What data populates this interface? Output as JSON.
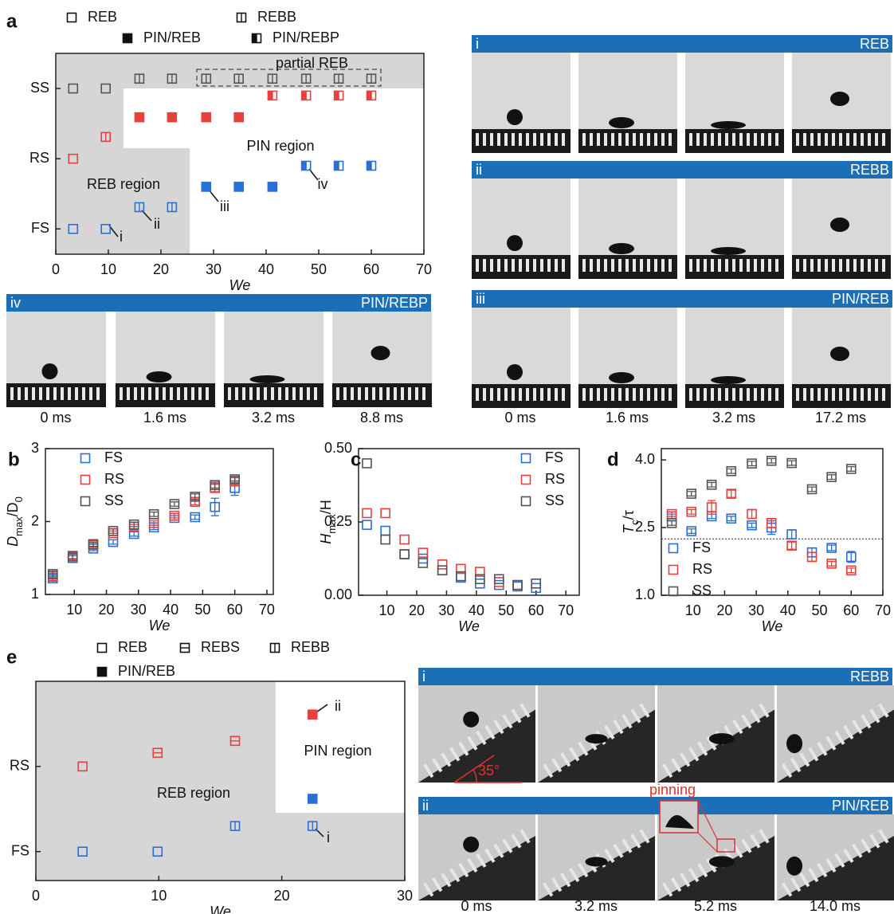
{
  "panel_labels": [
    "a",
    "b",
    "c",
    "d",
    "e"
  ],
  "chart_data": [
    {
      "type": "scatter",
      "xlabel": "We",
      "xlim": [
        0,
        70
      ],
      "xticks": [
        0,
        10,
        20,
        30,
        40,
        50,
        60,
        70
      ],
      "ylim": [
        -0.36,
        2.5
      ],
      "yticks": [
        {
          "value": 0,
          "label": "FS"
        },
        {
          "value": 1,
          "label": "RS"
        },
        {
          "value": 2,
          "label": "SS"
        }
      ],
      "legend": [
        "REB",
        "REBB",
        "PIN/REB",
        "PIN/REBP"
      ],
      "legend_markers": [
        "open",
        "v-bar",
        "filled",
        "half"
      ],
      "x": [
        3.3,
        9.5,
        15.9,
        22.1,
        28.6,
        34.8,
        41.2,
        47.6,
        53.8,
        60
      ],
      "series": [
        {
          "color": "#555555",
          "values": [
            2,
            2,
            2.14,
            2.14,
            2.14,
            2.14,
            2.14,
            2.14,
            2.14,
            2.14
          ],
          "markers": [
            "open",
            "open",
            "v-bar",
            "v-bar",
            "v-bar",
            "v-bar",
            "v-bar",
            "v-bar",
            "v-bar",
            "v-bar"
          ]
        },
        {
          "color": "#e8403f",
          "values": [
            1,
            1.31,
            1.59,
            1.59,
            1.59,
            1.59,
            1.9,
            1.9,
            1.9,
            1.9
          ],
          "markers": [
            "open",
            "v-bar",
            "filled",
            "filled",
            "filled",
            "filled",
            "half",
            "half",
            "half",
            "half"
          ]
        },
        {
          "color": "#2a6fd6",
          "values": [
            0,
            0,
            0.31,
            0.31,
            0.6,
            0.6,
            0.6,
            0.9,
            0.9,
            0.9
          ],
          "markers": [
            "open",
            "open",
            "v-bar",
            "v-bar",
            "filled",
            "filled",
            "filled",
            "half",
            "half",
            "half"
          ]
        }
      ],
      "annotations": [
        "partial REB",
        "PIN region",
        "REB region",
        "i",
        "ii",
        "iii",
        "iv"
      ]
    },
    {
      "type": "scatter",
      "xlabel": "We",
      "ylabel": [
        "D",
        "max",
        "/D",
        "0"
      ],
      "xlim": [
        1,
        72
      ],
      "xticks": [
        10,
        20,
        30,
        40,
        50,
        60,
        70
      ],
      "ylim": [
        1,
        3
      ],
      "yticks": [
        1,
        2,
        3
      ],
      "x": [
        3.3,
        9.5,
        15.9,
        22.1,
        28.6,
        34.8,
        41.2,
        47.6,
        53.8,
        60
      ],
      "series": [
        {
          "name": "FS",
          "color": "#2a6fd6",
          "values": [
            1.22,
            1.5,
            1.63,
            1.72,
            1.83,
            1.92,
            2.05,
            2.06,
            2.2,
            2.46
          ],
          "errors": [
            0.04,
            0.03,
            0.03,
            0.03,
            0.03,
            0.03,
            0.03,
            0.03,
            0.12,
            0.1
          ]
        },
        {
          "name": "RS",
          "color": "#e8403f",
          "values": [
            1.25,
            1.53,
            1.68,
            1.84,
            1.93,
            1.98,
            2.08,
            2.27,
            2.46,
            2.55
          ],
          "errors": [
            0.04,
            0.04,
            0.03,
            0.03,
            0.03,
            0.03,
            0.03,
            0.04,
            0.05,
            0.05
          ]
        },
        {
          "name": "SS",
          "color": "#555555",
          "values": [
            1.28,
            1.52,
            1.69,
            1.87,
            1.96,
            2.1,
            2.24,
            2.34,
            2.5,
            2.58
          ],
          "errors": [
            0.04,
            0.03,
            0.03,
            0.03,
            0.03,
            0.03,
            0.03,
            0.04,
            0.04,
            0.04
          ]
        }
      ]
    },
    {
      "type": "scatter",
      "xlabel": "We",
      "ylabel": [
        "H",
        "max",
        "/H"
      ],
      "xlim": [
        0.5,
        74.5
      ],
      "xticks": [
        10,
        20,
        30,
        40,
        50,
        60,
        70
      ],
      "ylim": [
        0,
        0.5
      ],
      "yticks": [
        {
          "value": 0,
          "label": "0.00"
        },
        {
          "value": 0.25,
          "label": "0.25"
        },
        {
          "value": 0.5,
          "label": "0.50"
        }
      ],
      "x": [
        3.3,
        9.5,
        15.9,
        22.1,
        28.6,
        34.8,
        41.2,
        47.6,
        53.8,
        60
      ],
      "series": [
        {
          "name": "FS",
          "color": "#2a6fd6",
          "values": [
            0.24,
            0.22,
            0.14,
            0.125,
            0.085,
            0.06,
            0.04,
            0.035,
            0.03,
            0.025
          ]
        },
        {
          "name": "RS",
          "color": "#e8403f",
          "values": [
            0.28,
            0.28,
            0.19,
            0.145,
            0.105,
            0.09,
            0.08,
            0.045,
            0.035,
            0.04
          ]
        },
        {
          "name": "SS",
          "color": "#555555",
          "values": [
            0.45,
            0.19,
            0.14,
            0.11,
            0.085,
            0.065,
            0.055,
            0.055,
            0.035,
            0.04
          ]
        }
      ]
    },
    {
      "type": "scatter",
      "xlabel": "We",
      "ylabel": [
        "T",
        "c",
        "/τ"
      ],
      "xlim": [
        0,
        70
      ],
      "xticks": [
        10,
        20,
        30,
        40,
        50,
        60,
        70
      ],
      "ylim": [
        1,
        4.25
      ],
      "yticks": [
        {
          "value": 1,
          "label": "1.0"
        },
        {
          "value": 2.5,
          "label": "2.5"
        },
        {
          "value": 4,
          "label": "4.0"
        }
      ],
      "hline": 2.25,
      "x": [
        3.3,
        9.5,
        15.9,
        22.1,
        28.6,
        34.8,
        41.2,
        47.6,
        53.8,
        60
      ],
      "series": [
        {
          "name": "FS",
          "color": "#2a6fd6",
          "values": [
            2.75,
            2.42,
            2.75,
            2.7,
            2.55,
            2.5,
            2.35,
            1.95,
            2.05,
            1.85
          ],
          "errors": [
            0.05,
            0.05,
            0.05,
            0.05,
            0.05,
            0.15,
            0.1,
            0.1,
            0.06,
            0.12
          ]
        },
        {
          "name": "RS",
          "color": "#e8403f",
          "values": [
            2.8,
            2.85,
            2.95,
            3.25,
            2.8,
            2.6,
            2.1,
            1.85,
            1.7,
            1.55
          ],
          "errors": [
            0.05,
            0.05,
            0.15,
            0.08,
            0.1,
            0.1,
            0.08,
            0.1,
            0.05,
            0.05
          ]
        },
        {
          "name": "SS",
          "color": "#555555",
          "values": [
            2.6,
            3.25,
            3.45,
            3.75,
            3.92,
            3.98,
            3.93,
            3.35,
            3.62,
            3.8
          ],
          "errors": [
            0.05,
            0.05,
            0.05,
            0.05,
            0.05,
            0.05,
            0.05,
            0.05,
            0.05,
            0.05
          ]
        }
      ]
    },
    {
      "type": "scatter",
      "xlabel": "We",
      "xlim": [
        0,
        30
      ],
      "xticks": [
        0,
        10,
        20,
        30
      ],
      "ylim": [
        -0.34,
        2
      ],
      "yticks": [
        {
          "value": 0,
          "label": "FS"
        },
        {
          "value": 1,
          "label": "RS"
        }
      ],
      "legend": [
        "REB",
        "REBS",
        "REBB",
        "PIN/REB"
      ],
      "legend_markers": [
        "open",
        "h-bar",
        "v-bar",
        "filled"
      ],
      "series": [
        {
          "color": "#2a6fd6",
          "x": [
            3.8,
            9.9,
            16.2,
            22.5,
            22.5
          ],
          "values": [
            0,
            0,
            0.3,
            0.3,
            0.62
          ],
          "markers": [
            "open",
            "open",
            "v-bar",
            "v-bar",
            "filled"
          ]
        },
        {
          "color": "#e8403f",
          "x": [
            3.8,
            9.9,
            16.2,
            22.5
          ],
          "values": [
            1,
            1.16,
            1.3,
            1.61
          ],
          "markers": [
            "open",
            "h-bar",
            "h-bar",
            "filled"
          ]
        }
      ],
      "annotations": [
        "PIN region",
        "REB region",
        "ii",
        "i"
      ]
    }
  ],
  "photo_panels": [
    {
      "label": "i",
      "title": "REB"
    },
    {
      "label": "ii",
      "title": "REBB"
    },
    {
      "label": "iii",
      "title": "PIN/REB"
    },
    {
      "label": "iv",
      "title": "PIN/REBP"
    },
    {
      "label": "i",
      "title": "REBB"
    },
    {
      "label": "ii",
      "title": "PIN/REB"
    }
  ],
  "photo_times": [
    [
      "0 ms",
      "1.6 ms",
      "3.2 ms",
      "8.8 ms"
    ],
    [
      "0 ms",
      "1.6 ms",
      "3.2 ms",
      "17.2 ms"
    ],
    [
      "0 ms",
      "3.2 ms",
      "5.2 ms",
      "14.0 ms"
    ]
  ],
  "photo_notes": [
    "35°",
    "pinning"
  ]
}
